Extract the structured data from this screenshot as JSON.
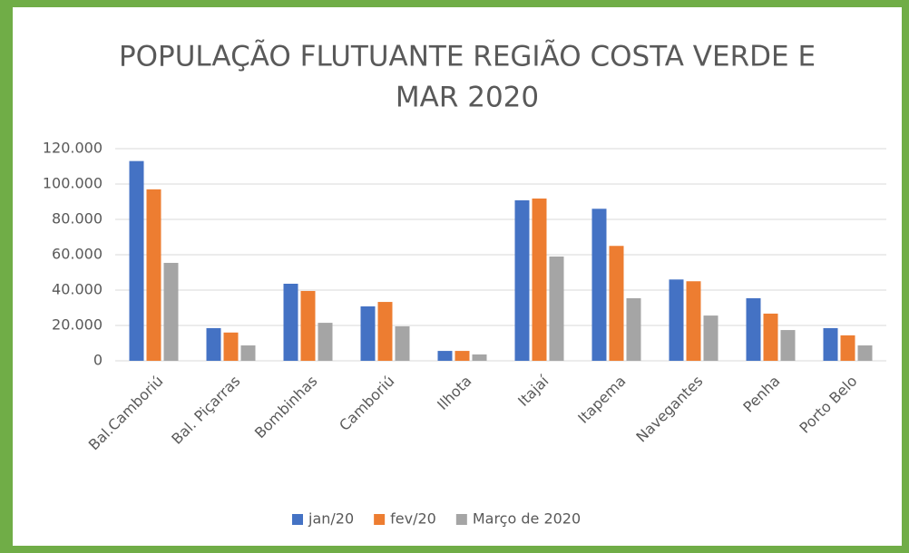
{
  "chart_data": {
    "type": "bar",
    "title": [
      "POPULAÇÃO FLUTUANTE REGIÃO COSTA VERDE E",
      "MAR 2020"
    ],
    "categories": [
      "Bal.Camboriú",
      "Bal. Piçarras",
      "Bombinhas",
      "Camboriú",
      "Ilhota",
      "Itajaí",
      "Itapema",
      "Navegantes",
      "Penha",
      "Porto Belo"
    ],
    "series": [
      {
        "name": "jan/20",
        "color": "#4472c4",
        "values": [
          113000,
          18500,
          43600,
          30800,
          5600,
          90800,
          86000,
          46000,
          35400,
          18500
        ]
      },
      {
        "name": "fev/20",
        "color": "#ed7d31",
        "values": [
          97000,
          16000,
          39500,
          33300,
          5600,
          91800,
          65000,
          45000,
          26700,
          14400
        ]
      },
      {
        "name": "Março de 2020",
        "color": "#a5a5a5",
        "values": [
          55400,
          8700,
          21500,
          19500,
          3600,
          59000,
          35400,
          25600,
          17400,
          8700
        ]
      }
    ],
    "ylim": [
      0,
      120000
    ],
    "yticks": [
      0,
      {
        "value": 20000,
        "label": "20.000"
      },
      {
        "value": 40000,
        "label": "40.000"
      },
      {
        "value": 60000,
        "label": "60.000"
      },
      {
        "value": 80000,
        "label": "80.000"
      },
      {
        "value": 100000,
        "label": "100.000"
      },
      {
        "value": 120000,
        "label": "120.000"
      }
    ],
    "grid": true,
    "legend": "bottom"
  }
}
